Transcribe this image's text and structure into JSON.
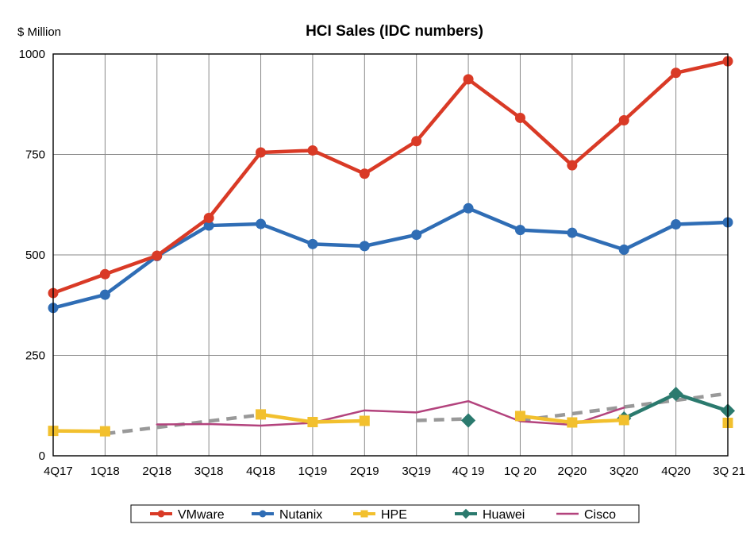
{
  "chart_data": {
    "type": "line",
    "title": "HCI Sales (IDC numbers)",
    "ylabel": "$ Million",
    "xlabel": "",
    "ylim": [
      0,
      1000
    ],
    "yticks": [
      0,
      250,
      500,
      750,
      1000
    ],
    "grid": true,
    "legend_position": "bottom",
    "categories": [
      "4Q17",
      "1Q18",
      "2Q18",
      "3Q18",
      "4Q18",
      "1Q19",
      "2Q19",
      "3Q19",
      "4Q 19",
      "1Q 20",
      "2Q20",
      "3Q20",
      "4Q20",
      "3Q 21"
    ],
    "series": [
      {
        "name": "VMware",
        "color": "#d93a26",
        "marker": "circle",
        "values": [
          405,
          452,
          498,
          592,
          755,
          760,
          702,
          783,
          937,
          841,
          723,
          835,
          953,
          982
        ]
      },
      {
        "name": "Nutanix",
        "color": "#2f6db5",
        "marker": "circle",
        "values": [
          368,
          401,
          497,
          573,
          577,
          527,
          522,
          550,
          616,
          562,
          555,
          513,
          576,
          581
        ]
      },
      {
        "name": "HPE",
        "color": "#f2c02e",
        "marker": "square",
        "values": [
          62,
          61,
          null,
          null,
          103,
          84,
          87,
          null,
          null,
          99,
          83,
          89,
          null,
          82
        ]
      },
      {
        "name": "Huawei",
        "color": "#2b7a6e",
        "marker": "diamond",
        "values": [
          null,
          null,
          null,
          null,
          null,
          null,
          null,
          null,
          88,
          null,
          null,
          93,
          154,
          112
        ]
      },
      {
        "name": "Cisco",
        "color": "#b3437d",
        "marker": "none",
        "values": [
          null,
          null,
          78,
          79,
          75,
          82,
          113,
          108,
          136,
          86,
          77,
          120,
          null,
          null
        ]
      }
    ],
    "trendline": {
      "color": "#999999",
      "style": "dashed",
      "segments": [
        {
          "x": [
            "1Q18",
            "4Q18"
          ],
          "values": [
            55,
            102
          ]
        },
        {
          "x": [
            "3Q19",
            "4Q 19"
          ],
          "values": [
            88,
            92
          ]
        },
        {
          "x": [
            "1Q 20",
            "3Q 21"
          ],
          "values": [
            88,
            155
          ]
        }
      ]
    }
  }
}
